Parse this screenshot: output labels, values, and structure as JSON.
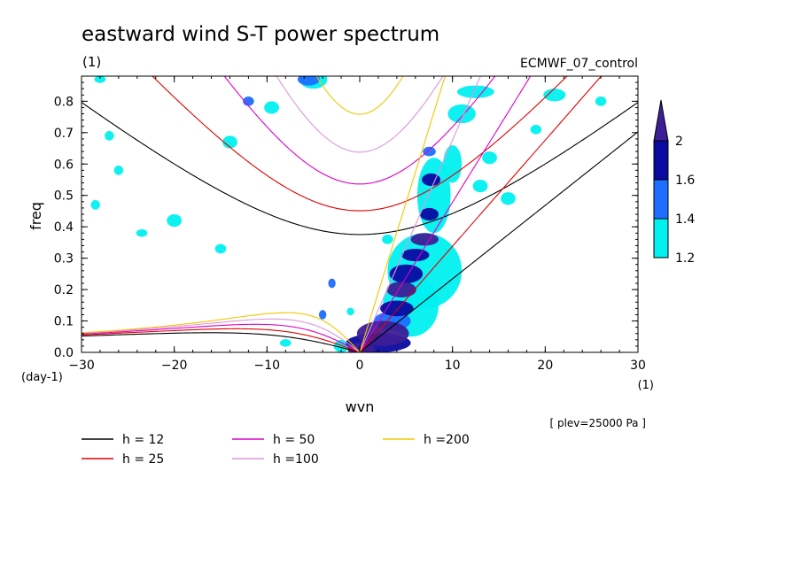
{
  "chart_data": {
    "type": "contour",
    "title": "eastward wind S-T power spectrum",
    "subtitle": "(1)",
    "source_label": "ECMWF_07_control",
    "xlabel": "wvn",
    "ylabel": "freq",
    "x_unit": "(1)",
    "y_unit": "(day-1)",
    "note": "[ plev=25000 Pa ]",
    "xlim": [
      -30,
      30
    ],
    "ylim": [
      0,
      0.88
    ],
    "x_ticks": [
      -30,
      -20,
      -10,
      0,
      10,
      20,
      30
    ],
    "y_ticks": [
      0.0,
      0.1,
      0.2,
      0.3,
      0.4,
      0.5,
      0.6,
      0.7,
      0.8
    ],
    "y_tick_labels": [
      "0.0",
      "0.1",
      "0.2",
      "0.3",
      "0.4",
      "0.5",
      "0.6",
      "0.7",
      "0.8"
    ],
    "colorbar": {
      "levels": [
        1.2,
        1.4,
        1.6,
        2
      ],
      "labels": [
        "1.2",
        "1.4",
        "1.6",
        "2"
      ],
      "colors": [
        "#00f0f0",
        "#1e6eff",
        "#0a0aa0",
        "#3c1e96"
      ]
    },
    "dispersion_curves": [
      {
        "label": "h = 12",
        "h": 12,
        "color": "#000000"
      },
      {
        "label": "h = 25",
        "h": 25,
        "color": "#e10000"
      },
      {
        "label": "h = 50",
        "h": 50,
        "color": "#dc00c8"
      },
      {
        "label": "h =100",
        "h": 100,
        "color": "#dc96dc"
      },
      {
        "label": "h =200",
        "h": 200,
        "color": "#f0c800"
      }
    ],
    "power_patches": [
      {
        "x": 0.2,
        "y": 0.01,
        "rx": 1.5,
        "ry": 0.02,
        "level": 4
      },
      {
        "x": 2.5,
        "y": 0.06,
        "rx": 2.8,
        "ry": 0.04,
        "level": 4
      },
      {
        "x": 2.0,
        "y": 0.03,
        "rx": 3.5,
        "ry": 0.03,
        "level": 3
      },
      {
        "x": 3.5,
        "y": 0.1,
        "rx": 2.0,
        "ry": 0.03,
        "level": 2
      },
      {
        "x": 4.0,
        "y": 0.14,
        "rx": 1.8,
        "ry": 0.025,
        "level": 3
      },
      {
        "x": 4.5,
        "y": 0.2,
        "rx": 1.6,
        "ry": 0.025,
        "level": 4
      },
      {
        "x": 5.0,
        "y": 0.25,
        "rx": 1.8,
        "ry": 0.03,
        "level": 3
      },
      {
        "x": 6.0,
        "y": 0.31,
        "rx": 1.5,
        "ry": 0.02,
        "level": 3
      },
      {
        "x": 7.0,
        "y": 0.36,
        "rx": 1.5,
        "ry": 0.02,
        "level": 4
      },
      {
        "x": 7.5,
        "y": 0.44,
        "rx": 1.0,
        "ry": 0.02,
        "level": 3
      },
      {
        "x": 7.7,
        "y": 0.55,
        "rx": 1.0,
        "ry": 0.02,
        "level": 3
      },
      {
        "x": 7.5,
        "y": 0.64,
        "rx": 0.7,
        "ry": 0.015,
        "level": 2
      },
      {
        "x": 7.0,
        "y": 0.26,
        "rx": 4.0,
        "ry": 0.12,
        "level": 1
      },
      {
        "x": 5.5,
        "y": 0.15,
        "rx": 3.0,
        "ry": 0.1,
        "level": 1
      },
      {
        "x": 8.0,
        "y": 0.5,
        "rx": 1.8,
        "ry": 0.12,
        "level": 1
      },
      {
        "x": 10.0,
        "y": 0.6,
        "rx": 1.0,
        "ry": 0.06,
        "level": 1
      },
      {
        "x": 11.0,
        "y": 0.76,
        "rx": 1.5,
        "ry": 0.03,
        "level": 1
      },
      {
        "x": 12.5,
        "y": 0.83,
        "rx": 2.0,
        "ry": 0.02,
        "level": 1
      },
      {
        "x": 14.0,
        "y": 0.62,
        "rx": 0.8,
        "ry": 0.02,
        "level": 1
      },
      {
        "x": 13.0,
        "y": 0.53,
        "rx": 0.8,
        "ry": 0.02,
        "level": 1
      },
      {
        "x": 16.0,
        "y": 0.49,
        "rx": 0.8,
        "ry": 0.02,
        "level": 1
      },
      {
        "x": 21.0,
        "y": 0.82,
        "rx": 1.2,
        "ry": 0.02,
        "level": 1
      },
      {
        "x": -5.5,
        "y": 0.87,
        "rx": 1.2,
        "ry": 0.02,
        "level": 2
      },
      {
        "x": -5.0,
        "y": 0.87,
        "rx": 1.5,
        "ry": 0.03,
        "level": 1
      },
      {
        "x": -12.0,
        "y": 0.8,
        "rx": 0.6,
        "ry": 0.015,
        "level": 2
      },
      {
        "x": -3.0,
        "y": 0.22,
        "rx": 0.4,
        "ry": 0.015,
        "level": 2
      },
      {
        "x": -4.0,
        "y": 0.12,
        "rx": 0.4,
        "ry": 0.015,
        "level": 2
      },
      {
        "x": -9.5,
        "y": 0.78,
        "rx": 0.8,
        "ry": 0.02,
        "level": 1
      },
      {
        "x": -14.0,
        "y": 0.67,
        "rx": 0.8,
        "ry": 0.02,
        "level": 1
      },
      {
        "x": -23.5,
        "y": 0.38,
        "rx": 0.6,
        "ry": 0.012,
        "level": 1
      },
      {
        "x": -20.0,
        "y": 0.42,
        "rx": 0.8,
        "ry": 0.02,
        "level": 1
      },
      {
        "x": -15.0,
        "y": 0.33,
        "rx": 0.6,
        "ry": 0.015,
        "level": 1
      },
      {
        "x": -28.5,
        "y": 0.47,
        "rx": 0.5,
        "ry": 0.015,
        "level": 1
      },
      {
        "x": -27.0,
        "y": 0.69,
        "rx": 0.5,
        "ry": 0.015,
        "level": 1
      },
      {
        "x": -28.0,
        "y": 0.87,
        "rx": 0.6,
        "ry": 0.012,
        "level": 1
      },
      {
        "x": -26.0,
        "y": 0.58,
        "rx": 0.5,
        "ry": 0.015,
        "level": 1
      },
      {
        "x": -8.0,
        "y": 0.03,
        "rx": 0.6,
        "ry": 0.012,
        "level": 1
      },
      {
        "x": 3.0,
        "y": 0.36,
        "rx": 0.6,
        "ry": 0.015,
        "level": 1
      },
      {
        "x": -1.0,
        "y": 0.13,
        "rx": 0.4,
        "ry": 0.012,
        "level": 1
      },
      {
        "x": 19.0,
        "y": 0.71,
        "rx": 0.6,
        "ry": 0.015,
        "level": 1
      },
      {
        "x": 26.0,
        "y": 0.8,
        "rx": 0.6,
        "ry": 0.015,
        "level": 1
      },
      {
        "x": -2.0,
        "y": 0.02,
        "rx": 0.8,
        "ry": 0.02,
        "level": 1
      }
    ]
  }
}
